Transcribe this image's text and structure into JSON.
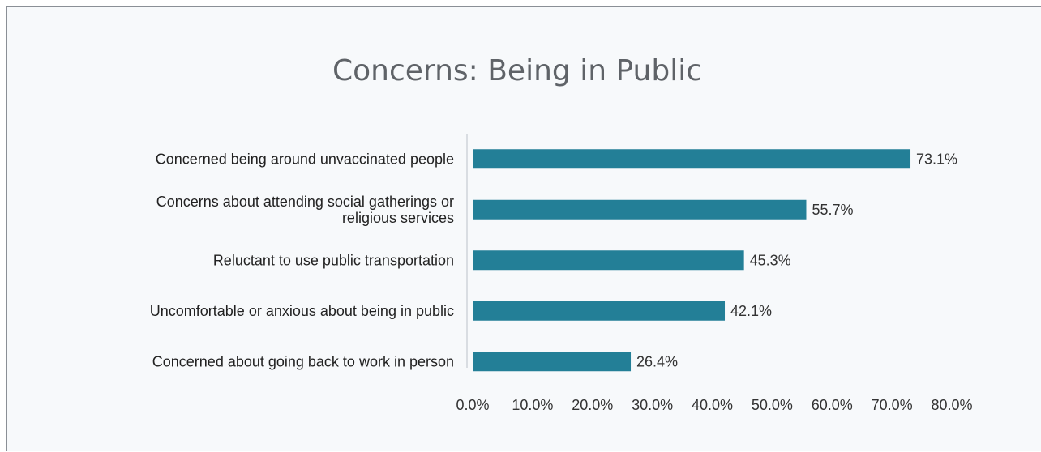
{
  "chart_data": {
    "type": "bar",
    "orientation": "horizontal",
    "title": "Concerns: Being in Public",
    "categories": [
      [
        "Concerned being around unvaccinated people"
      ],
      [
        "Concerns about attending social gatherings or",
        "religious services"
      ],
      [
        "Reluctant to use public transportation"
      ],
      [
        "Uncomfortable or anxious about being in public"
      ],
      [
        "Concerned about going back to work in person"
      ]
    ],
    "values": [
      73.1,
      55.7,
      45.3,
      42.1,
      26.4
    ],
    "value_labels": [
      "73.1%",
      "55.7%",
      "45.3%",
      "42.1%",
      "26.4%"
    ],
    "xlim": [
      0,
      80
    ],
    "ticks": [
      "0.0%",
      "10.0%",
      "20.0%",
      "30.0%",
      "40.0%",
      "50.0%",
      "60.0%",
      "70.0%",
      "80.0%"
    ],
    "grid": false,
    "bar_color": "#237f97",
    "background": "#f7f9fb"
  }
}
